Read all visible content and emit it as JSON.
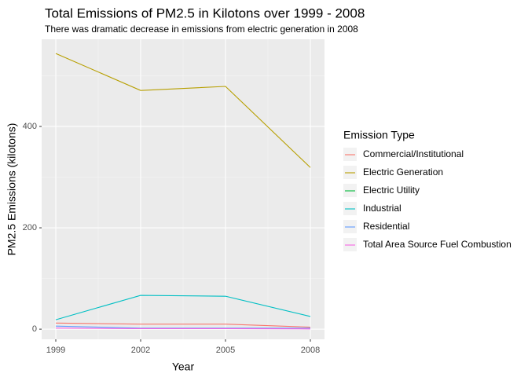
{
  "chart_data": {
    "type": "line",
    "title": "Total Emissions of PM2.5 in Kilotons over 1999 - 2008",
    "subtitle": "There was dramatic decrease in emissions from electric generation in 2008",
    "x_label": "Year",
    "y_label": "PM2.5 Emissions (kilotons)",
    "legend_title": "Emission Type",
    "x": [
      1999,
      2002,
      2005,
      2008
    ],
    "series": [
      {
        "name": "Commercial/Institutional",
        "color": "#F8766D",
        "values": [
          12,
          10,
          10,
          4
        ]
      },
      {
        "name": "Electric Generation",
        "color": "#B79F00",
        "values": [
          544,
          471,
          479,
          319
        ]
      },
      {
        "name": "Electric Utility",
        "color": "#00BA38",
        "values": [
          null,
          1,
          1,
          null
        ]
      },
      {
        "name": "Industrial",
        "color": "#00BFC4",
        "values": [
          18.6,
          66.7,
          65,
          25
        ]
      },
      {
        "name": "Residential",
        "color": "#619CFF",
        "values": [
          6,
          2,
          2,
          2
        ]
      },
      {
        "name": "Total Area Source Fuel Combustion",
        "color": "#F564E3",
        "values": [
          2,
          1,
          1,
          0.5
        ]
      }
    ],
    "xlim": [
      1998.5,
      2008.5
    ],
    "xticks": [
      1999,
      2002,
      2005,
      2008
    ],
    "ylim": [
      -20,
      572
    ],
    "yticks": [
      0,
      200,
      400
    ],
    "grid": true,
    "minor_grid": true,
    "legend_position": "right"
  }
}
